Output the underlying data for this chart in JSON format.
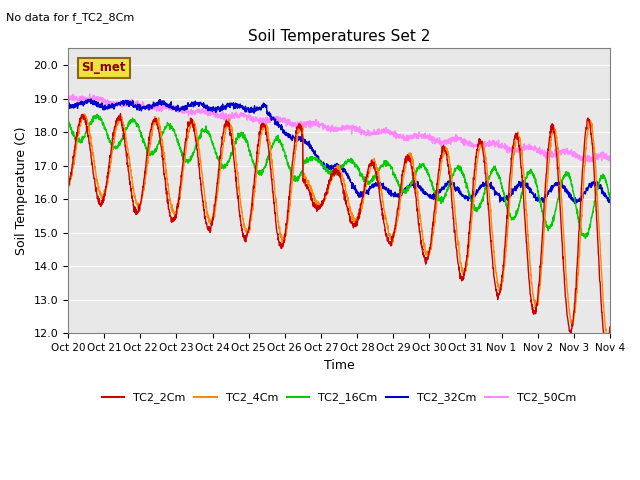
{
  "title": "Soil Temperatures Set 2",
  "no_data_text": "No data for f_TC2_8Cm",
  "annotation_text": "SI_met",
  "ylabel": "Soil Temperature (C)",
  "xlabel": "Time",
  "ylim": [
    12.0,
    20.5
  ],
  "yticks": [
    12.0,
    13.0,
    14.0,
    15.0,
    16.0,
    17.0,
    18.0,
    19.0,
    20.0
  ],
  "bg_color": "#e8e8e8",
  "fig_color": "#ffffff",
  "line_colors": {
    "TC2_2Cm": "#cc0000",
    "TC2_4Cm": "#ff8800",
    "TC2_16Cm": "#00cc00",
    "TC2_32Cm": "#0000cc",
    "TC2_50Cm": "#ff88ff"
  },
  "xtick_labels": [
    "Oct 20",
    "Oct 21",
    "Oct 22",
    "Oct 23",
    "Oct 24",
    "Oct 25",
    "Oct 26",
    "Oct 27",
    "Oct 28",
    "Oct 29",
    "Oct 30",
    "Oct 31",
    "Nov 1",
    "Nov 2",
    "Nov 3",
    "Nov 4"
  ],
  "total_days": 15,
  "n_points": 2160
}
